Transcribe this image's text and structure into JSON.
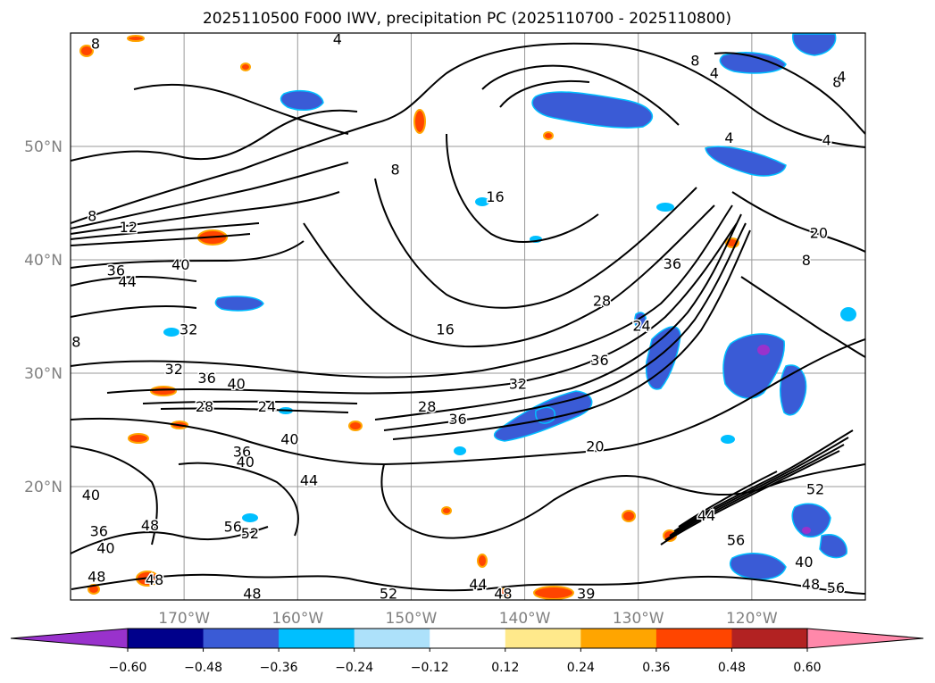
{
  "title": "2025110500 F000 IWV, precipitation PC (2025110700 - 2025110800)",
  "map": {
    "lon_range": [
      -180,
      -110
    ],
    "lat_range": [
      10,
      60
    ],
    "lon_ticks": [
      {
        "value": -170,
        "label": "170°W"
      },
      {
        "value": -160,
        "label": "160°W"
      },
      {
        "value": -150,
        "label": "150°W"
      },
      {
        "value": -140,
        "label": "140°W"
      },
      {
        "value": -130,
        "label": "130°W"
      },
      {
        "value": -120,
        "label": "120°W"
      }
    ],
    "lat_ticks": [
      {
        "value": 20,
        "label": "20°N"
      },
      {
        "value": 30,
        "label": "30°N"
      },
      {
        "value": 40,
        "label": "40°N"
      },
      {
        "value": 50,
        "label": "50°N"
      }
    ],
    "grid": true,
    "contour_labels": [
      {
        "text": "8",
        "lon": -177.8,
        "lat": 59.1
      },
      {
        "text": "4",
        "lon": -156.5,
        "lat": 59.5
      },
      {
        "text": "8",
        "lon": -125.0,
        "lat": 57.6
      },
      {
        "text": "4",
        "lon": -123.3,
        "lat": 56.5
      },
      {
        "text": "8",
        "lon": -112.5,
        "lat": 55.7
      },
      {
        "text": "4",
        "lon": -112.1,
        "lat": 56.2
      },
      {
        "text": "4",
        "lon": -113.4,
        "lat": 50.6
      },
      {
        "text": "4",
        "lon": -122.0,
        "lat": 50.8
      },
      {
        "text": "8",
        "lon": -151.4,
        "lat": 48.0
      },
      {
        "text": "16",
        "lon": -142.6,
        "lat": 45.6
      },
      {
        "text": "8",
        "lon": -178.1,
        "lat": 43.9
      },
      {
        "text": "12",
        "lon": -174.9,
        "lat": 42.9
      },
      {
        "text": "36",
        "lon": -176.0,
        "lat": 39.1
      },
      {
        "text": "40",
        "lon": -170.3,
        "lat": 39.6
      },
      {
        "text": "44",
        "lon": -175.0,
        "lat": 38.1
      },
      {
        "text": "20",
        "lon": -114.1,
        "lat": 42.4
      },
      {
        "text": "8",
        "lon": -115.2,
        "lat": 40.0
      },
      {
        "text": "36",
        "lon": -127.0,
        "lat": 39.7
      },
      {
        "text": "28",
        "lon": -133.2,
        "lat": 36.4
      },
      {
        "text": "24",
        "lon": -129.7,
        "lat": 34.2
      },
      {
        "text": "16",
        "lon": -147.0,
        "lat": 33.9
      },
      {
        "text": "32",
        "lon": -169.6,
        "lat": 33.9
      },
      {
        "text": "36",
        "lon": -133.4,
        "lat": 31.2
      },
      {
        "text": "8",
        "lon": -179.5,
        "lat": 32.8
      },
      {
        "text": "32",
        "lon": -170.9,
        "lat": 30.4
      },
      {
        "text": "36",
        "lon": -168.0,
        "lat": 29.6
      },
      {
        "text": "40",
        "lon": -165.4,
        "lat": 29.1
      },
      {
        "text": "32",
        "lon": -140.6,
        "lat": 29.1
      },
      {
        "text": "28",
        "lon": -168.2,
        "lat": 27.1
      },
      {
        "text": "24",
        "lon": -162.7,
        "lat": 27.1
      },
      {
        "text": "28",
        "lon": -148.6,
        "lat": 27.1
      },
      {
        "text": "36",
        "lon": -145.9,
        "lat": 26.0
      },
      {
        "text": "20",
        "lon": -133.8,
        "lat": 23.6
      },
      {
        "text": "40",
        "lon": -160.7,
        "lat": 24.2
      },
      {
        "text": "36",
        "lon": -164.9,
        "lat": 23.1
      },
      {
        "text": "40",
        "lon": -164.6,
        "lat": 22.2
      },
      {
        "text": "44",
        "lon": -159.0,
        "lat": 20.6
      },
      {
        "text": "40",
        "lon": -178.2,
        "lat": 19.3
      },
      {
        "text": "52",
        "lon": -114.4,
        "lat": 19.8
      },
      {
        "text": "44",
        "lon": -124.0,
        "lat": 17.5
      },
      {
        "text": "36",
        "lon": -177.5,
        "lat": 16.1
      },
      {
        "text": "48",
        "lon": -173.0,
        "lat": 16.6
      },
      {
        "text": "56",
        "lon": -165.7,
        "lat": 16.5
      },
      {
        "text": "52",
        "lon": -164.2,
        "lat": 15.9
      },
      {
        "text": "40",
        "lon": -176.9,
        "lat": 14.6
      },
      {
        "text": "56",
        "lon": -121.4,
        "lat": 15.3
      },
      {
        "text": "40",
        "lon": -115.4,
        "lat": 13.4
      },
      {
        "text": "48",
        "lon": -177.7,
        "lat": 12.1
      },
      {
        "text": "48",
        "lon": -172.6,
        "lat": 11.8
      },
      {
        "text": "48",
        "lon": -114.8,
        "lat": 11.4
      },
      {
        "text": "56",
        "lon": -112.6,
        "lat": 11.1
      },
      {
        "text": "48",
        "lon": -164.0,
        "lat": 10.6
      },
      {
        "text": "52",
        "lon": -152.0,
        "lat": 10.6
      },
      {
        "text": "44",
        "lon": -144.1,
        "lat": 11.4
      },
      {
        "text": "48",
        "lon": -141.9,
        "lat": 10.6
      },
      {
        "text": "39",
        "lon": -134.6,
        "lat": 10.6
      }
    ]
  },
  "colorbar": {
    "tick_labels": [
      "−0.60",
      "−0.48",
      "−0.36",
      "−0.24",
      "−0.12",
      "0.12",
      "0.24",
      "0.36",
      "0.48",
      "0.60"
    ],
    "colors": [
      "#9932CC",
      "#00008B",
      "#3A5BD6",
      "#00BFFF",
      "#ADE1FA",
      "#FFFFFF",
      "#FFE98B",
      "#FFA500",
      "#FF4500",
      "#B22222",
      "#FF88AA"
    ]
  }
}
